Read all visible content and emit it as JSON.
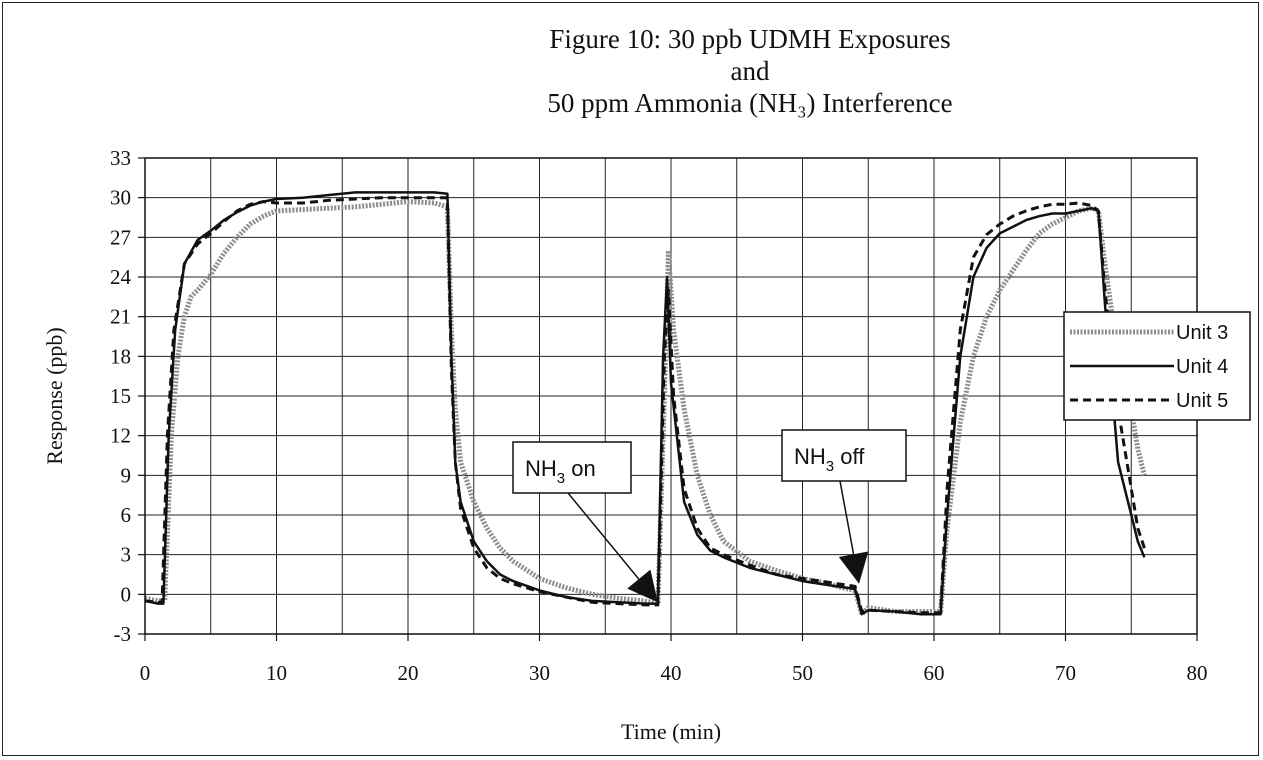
{
  "chart_data": {
    "type": "line",
    "title_lines": [
      "Figure 10: 30 ppb UDMH Exposures",
      "and",
      "50 ppm Ammonia (NH₃) Interference"
    ],
    "xlabel": "Time (min)",
    "ylabel": "Response (ppb)",
    "xlim": [
      0,
      80
    ],
    "ylim": [
      -3,
      33
    ],
    "x_ticks": [
      0,
      10,
      20,
      30,
      40,
      50,
      60,
      70,
      80
    ],
    "y_ticks": [
      -3,
      0,
      3,
      6,
      9,
      12,
      15,
      18,
      21,
      24,
      27,
      30,
      33
    ],
    "grid": true,
    "legend_position": "right",
    "series": [
      {
        "name": "Unit 3",
        "style": "grey-dotted-thick",
        "color": "#8a8a8a",
        "points": [
          [
            0,
            -0.3
          ],
          [
            1,
            -0.5
          ],
          [
            1.5,
            -0.5
          ],
          [
            2,
            12
          ],
          [
            2.5,
            18
          ],
          [
            3,
            21
          ],
          [
            3.5,
            22.5
          ],
          [
            4,
            23
          ],
          [
            5,
            24.2
          ],
          [
            6,
            25.8
          ],
          [
            7,
            27
          ],
          [
            8,
            28
          ],
          [
            9,
            28.6
          ],
          [
            10,
            29
          ],
          [
            12,
            29.1
          ],
          [
            14,
            29.2
          ],
          [
            16,
            29.3
          ],
          [
            18,
            29.5
          ],
          [
            20,
            29.7
          ],
          [
            22,
            29.6
          ],
          [
            23,
            29.3
          ],
          [
            23.3,
            20
          ],
          [
            23.6,
            14
          ],
          [
            24,
            10
          ],
          [
            25,
            7
          ],
          [
            26,
            5
          ],
          [
            27,
            3.5
          ],
          [
            28,
            2.5
          ],
          [
            30,
            1.2
          ],
          [
            32,
            0.5
          ],
          [
            34,
            0
          ],
          [
            36,
            -0.3
          ],
          [
            38,
            -0.5
          ],
          [
            39,
            -0.7
          ],
          [
            39.5,
            15
          ],
          [
            39.8,
            26
          ],
          [
            40.2,
            20
          ],
          [
            41,
            14
          ],
          [
            42,
            9
          ],
          [
            43,
            6
          ],
          [
            44,
            4
          ],
          [
            46,
            2.5
          ],
          [
            48,
            1.8
          ],
          [
            50,
            1.2
          ],
          [
            52,
            0.8
          ],
          [
            53,
            0.5
          ],
          [
            54,
            0.3
          ],
          [
            54.5,
            -1.5
          ],
          [
            55,
            -1
          ],
          [
            57,
            -1.3
          ],
          [
            59,
            -1.3
          ],
          [
            60.5,
            -1.3
          ],
          [
            61,
            5
          ],
          [
            62,
            13
          ],
          [
            63,
            18
          ],
          [
            64,
            21
          ],
          [
            65,
            23
          ],
          [
            66,
            24.5
          ],
          [
            67,
            26
          ],
          [
            68,
            27.3
          ],
          [
            69,
            28
          ],
          [
            70,
            28.5
          ],
          [
            71,
            29
          ],
          [
            72,
            29.2
          ],
          [
            72.5,
            29
          ],
          [
            73,
            25
          ],
          [
            74,
            18
          ],
          [
            75,
            14
          ],
          [
            75.5,
            11
          ],
          [
            76,
            9
          ]
        ]
      },
      {
        "name": "Unit 4",
        "style": "solid",
        "color": "#111111",
        "points": [
          [
            0,
            -0.5
          ],
          [
            1,
            -0.7
          ],
          [
            1.4,
            -0.7
          ],
          [
            1.8,
            12
          ],
          [
            2.3,
            20
          ],
          [
            3,
            25
          ],
          [
            4,
            26.8
          ],
          [
            5,
            27.5
          ],
          [
            6,
            28.3
          ],
          [
            7,
            28.9
          ],
          [
            8,
            29.4
          ],
          [
            9,
            29.7
          ],
          [
            10,
            29.9
          ],
          [
            12,
            30
          ],
          [
            14,
            30.2
          ],
          [
            16,
            30.4
          ],
          [
            18,
            30.4
          ],
          [
            20,
            30.4
          ],
          [
            22,
            30.4
          ],
          [
            23,
            30.3
          ],
          [
            23.3,
            18
          ],
          [
            23.6,
            10
          ],
          [
            24,
            7
          ],
          [
            25,
            4
          ],
          [
            26,
            2.5
          ],
          [
            27,
            1.5
          ],
          [
            28,
            1
          ],
          [
            30,
            0.3
          ],
          [
            32,
            -0.2
          ],
          [
            34,
            -0.5
          ],
          [
            36,
            -0.6
          ],
          [
            38,
            -0.7
          ],
          [
            39,
            -0.7
          ],
          [
            39.4,
            18
          ],
          [
            39.7,
            24
          ],
          [
            40,
            16
          ],
          [
            41,
            7
          ],
          [
            42,
            4.5
          ],
          [
            43,
            3.3
          ],
          [
            44,
            2.8
          ],
          [
            46,
            2
          ],
          [
            48,
            1.5
          ],
          [
            50,
            1
          ],
          [
            52,
            0.7
          ],
          [
            54,
            0.4
          ],
          [
            54.5,
            -1.5
          ],
          [
            55,
            -1.2
          ],
          [
            57,
            -1.3
          ],
          [
            59,
            -1.5
          ],
          [
            60.5,
            -1.5
          ],
          [
            61,
            6
          ],
          [
            62,
            18
          ],
          [
            63,
            24
          ],
          [
            64,
            26.2
          ],
          [
            65,
            27.3
          ],
          [
            66,
            27.8
          ],
          [
            67,
            28.3
          ],
          [
            68,
            28.6
          ],
          [
            69,
            28.8
          ],
          [
            70,
            28.8
          ],
          [
            71,
            29
          ],
          [
            72,
            29.2
          ],
          [
            72.5,
            29
          ],
          [
            73,
            22
          ],
          [
            74,
            10
          ],
          [
            75,
            6
          ],
          [
            75.5,
            4
          ],
          [
            76,
            2.8
          ]
        ]
      },
      {
        "name": "Unit 5",
        "style": "dashed",
        "color": "#111111",
        "points": [
          [
            0,
            -0.5
          ],
          [
            1,
            -0.6
          ],
          [
            1.3,
            -0.6
          ],
          [
            1.7,
            12
          ],
          [
            2.2,
            20
          ],
          [
            3,
            25
          ],
          [
            4,
            26.5
          ],
          [
            5,
            27.3
          ],
          [
            6,
            28.2
          ],
          [
            7,
            29
          ],
          [
            8,
            29.5
          ],
          [
            9,
            29.7
          ],
          [
            10,
            29.6
          ],
          [
            12,
            29.6
          ],
          [
            14,
            29.8
          ],
          [
            16,
            29.9
          ],
          [
            18,
            30
          ],
          [
            20,
            30
          ],
          [
            22,
            30
          ],
          [
            23,
            30
          ],
          [
            23.3,
            17
          ],
          [
            23.6,
            10
          ],
          [
            24,
            6.5
          ],
          [
            25,
            3.5
          ],
          [
            26,
            2
          ],
          [
            27,
            1.2
          ],
          [
            28,
            0.8
          ],
          [
            30,
            0.2
          ],
          [
            32,
            -0.2
          ],
          [
            34,
            -0.6
          ],
          [
            36,
            -0.7
          ],
          [
            38,
            -0.8
          ],
          [
            39,
            -0.8
          ],
          [
            39.5,
            18
          ],
          [
            39.8,
            23
          ],
          [
            40.2,
            15
          ],
          [
            41,
            8
          ],
          [
            42,
            5
          ],
          [
            43,
            3.5
          ],
          [
            44,
            3
          ],
          [
            46,
            2.2
          ],
          [
            48,
            1.5
          ],
          [
            50,
            1.2
          ],
          [
            52,
            0.9
          ],
          [
            54,
            0.6
          ],
          [
            54.5,
            -1.3
          ],
          [
            55,
            -1.2
          ],
          [
            57,
            -1.3
          ],
          [
            59,
            -1.4
          ],
          [
            60.5,
            -1.4
          ],
          [
            61,
            8
          ],
          [
            62,
            20
          ],
          [
            63,
            25.5
          ],
          [
            64,
            27.2
          ],
          [
            65,
            28
          ],
          [
            66,
            28.6
          ],
          [
            67,
            29
          ],
          [
            68,
            29.3
          ],
          [
            69,
            29.5
          ],
          [
            70,
            29.5
          ],
          [
            71,
            29.6
          ],
          [
            72,
            29.4
          ],
          [
            72.5,
            29
          ],
          [
            73,
            23
          ],
          [
            74,
            14
          ],
          [
            75,
            8
          ],
          [
            75.5,
            5
          ],
          [
            76,
            3.5
          ]
        ]
      }
    ],
    "annotations": [
      {
        "text_main": "NH",
        "text_sub": "3",
        "text_tail": " on",
        "arrow_to": [
          39,
          -0.6
        ]
      },
      {
        "text_main": "NH",
        "text_sub": "3",
        "text_tail": " off",
        "arrow_to": [
          54.3,
          0.8
        ]
      }
    ]
  }
}
